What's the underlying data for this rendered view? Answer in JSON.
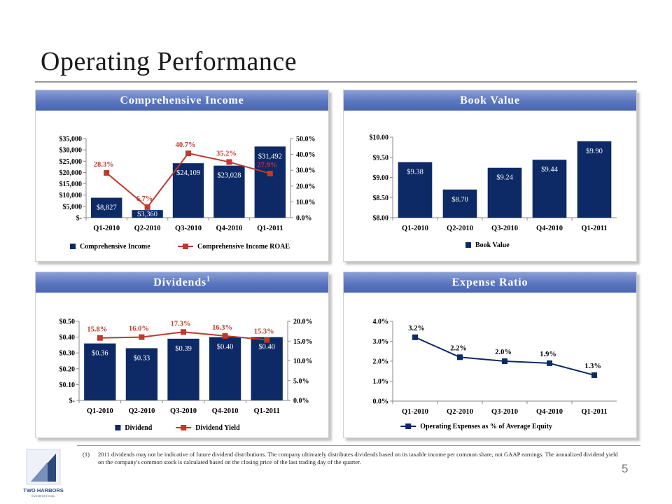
{
  "page": {
    "title": "Operating Performance",
    "page_number": "5"
  },
  "footnote": {
    "marker": "(1)",
    "text": "2011 dividends may not be indicative of future dividend distributions. The company ultimately distributes dividends based on its taxable income per common share, not GAAP earnings. The annualized dividend yield on the company's common stock is calculated based on the closing price of the last trading day of the quarter."
  },
  "logo": {
    "name": "TWO HARBORS",
    "tagline": "Investment Corp."
  },
  "colors": {
    "bar": "#0d2a66",
    "line": "#c0392b",
    "header_top": "#8a9fd6",
    "header_bottom": "#4a66b3",
    "expense_line": "#0d2a66"
  },
  "panels": {
    "comprehensive_income": {
      "title": "Comprehensive Income"
    },
    "book_value": {
      "title": "Book Value"
    },
    "dividends": {
      "title": "Dividends",
      "title_sup": "1"
    },
    "expense_ratio": {
      "title": "Expense Ratio"
    }
  },
  "chart_data": [
    {
      "id": "comprehensive_income",
      "type": "bar",
      "title": "Comprehensive Income",
      "categories": [
        "Q1-2010",
        "Q2-2010",
        "Q3-2010",
        "Q4-2010",
        "Q1-2011"
      ],
      "series": [
        {
          "name": "Comprehensive Income",
          "kind": "bar",
          "axis": "left",
          "values": [
            8827,
            3360,
            24109,
            23028,
            31492
          ],
          "labels": [
            "$8,827",
            "$3,360",
            "$24,109",
            "$23,028",
            "$31,492"
          ]
        },
        {
          "name": "Comprehensive Income ROAE",
          "kind": "line",
          "axis": "right",
          "values": [
            28.3,
            6.7,
            40.7,
            35.2,
            27.9
          ],
          "labels": [
            "28.3%",
            "6.7%",
            "40.7%",
            "35.2%",
            "27.9%"
          ]
        }
      ],
      "left_axis": {
        "min": 0,
        "max": 35000,
        "ticks": [
          0,
          5000,
          10000,
          15000,
          20000,
          25000,
          30000,
          35000
        ],
        "tick_labels": [
          "$-",
          "$5,000",
          "$10,000",
          "$15,000",
          "$20,000",
          "$25,000",
          "$30,000",
          "$35,000"
        ]
      },
      "right_axis": {
        "min": 0,
        "max": 50,
        "ticks": [
          0,
          10,
          20,
          30,
          40,
          50
        ],
        "tick_labels": [
          "0.0%",
          "10.0%",
          "20.0%",
          "30.0%",
          "40.0%",
          "50.0%"
        ]
      },
      "legend_position": "bottom",
      "grid": false
    },
    {
      "id": "book_value",
      "type": "bar",
      "title": "Book Value",
      "categories": [
        "Q1-2010",
        "Q2-2010",
        "Q3-2010",
        "Q4-2010",
        "Q1-2011"
      ],
      "series": [
        {
          "name": "Book Value",
          "kind": "bar",
          "axis": "left",
          "values": [
            9.38,
            8.7,
            9.24,
            9.44,
            9.9
          ],
          "labels": [
            "$9.38",
            "$8.70",
            "$9.24",
            "$9.44",
            "$9.90"
          ]
        }
      ],
      "left_axis": {
        "min": 8.0,
        "max": 10.0,
        "ticks": [
          8.0,
          8.5,
          9.0,
          9.5,
          10.0
        ],
        "tick_labels": [
          "$8.00",
          "$8.50",
          "$9.00",
          "$9.50",
          "$10.00"
        ]
      },
      "legend_position": "bottom",
      "grid": false
    },
    {
      "id": "dividends",
      "type": "bar",
      "title": "Dividends",
      "categories": [
        "Q1-2010",
        "Q2-2010",
        "Q3-2010",
        "Q4-2010",
        "Q1-2011"
      ],
      "series": [
        {
          "name": "Dividend",
          "kind": "bar",
          "axis": "left",
          "values": [
            0.36,
            0.33,
            0.39,
            0.4,
            0.4
          ],
          "labels": [
            "$0.36",
            "$0.33",
            "$0.39",
            "$0.40",
            "$0.40"
          ]
        },
        {
          "name": "Dividend Yield",
          "kind": "line",
          "axis": "right",
          "values": [
            15.8,
            16.0,
            17.3,
            16.3,
            15.3
          ],
          "labels": [
            "15.8%",
            "16.0%",
            "17.3%",
            "16.3%",
            "15.3%"
          ]
        }
      ],
      "left_axis": {
        "min": 0,
        "max": 0.5,
        "ticks": [
          0,
          0.1,
          0.2,
          0.3,
          0.4,
          0.5
        ],
        "tick_labels": [
          "$-",
          "$0.10",
          "$0.20",
          "$0.30",
          "$0.40",
          "$0.50"
        ]
      },
      "right_axis": {
        "min": 0,
        "max": 20,
        "ticks": [
          0,
          5,
          10,
          15,
          20
        ],
        "tick_labels": [
          "0.0%",
          "5.0%",
          "10.0%",
          "15.0%",
          "20.0%"
        ]
      },
      "legend_position": "bottom",
      "grid": false
    },
    {
      "id": "expense_ratio",
      "type": "line",
      "title": "Expense Ratio",
      "categories": [
        "Q1-2010",
        "Q2-2010",
        "Q3-2010",
        "Q4-2010",
        "Q1-2011"
      ],
      "series": [
        {
          "name": "Operating Expenses as % of Average Equity",
          "kind": "line",
          "axis": "left",
          "values": [
            3.2,
            2.2,
            2.0,
            1.9,
            1.3
          ],
          "labels": [
            "3.2%",
            "2.2%",
            "2.0%",
            "1.9%",
            "1.3%"
          ]
        }
      ],
      "left_axis": {
        "min": 0,
        "max": 4.0,
        "ticks": [
          0,
          1,
          2,
          3,
          4
        ],
        "tick_labels": [
          "0.0%",
          "1.0%",
          "2.0%",
          "3.0%",
          "4.0%"
        ]
      },
      "legend_position": "bottom",
      "grid": false
    }
  ]
}
